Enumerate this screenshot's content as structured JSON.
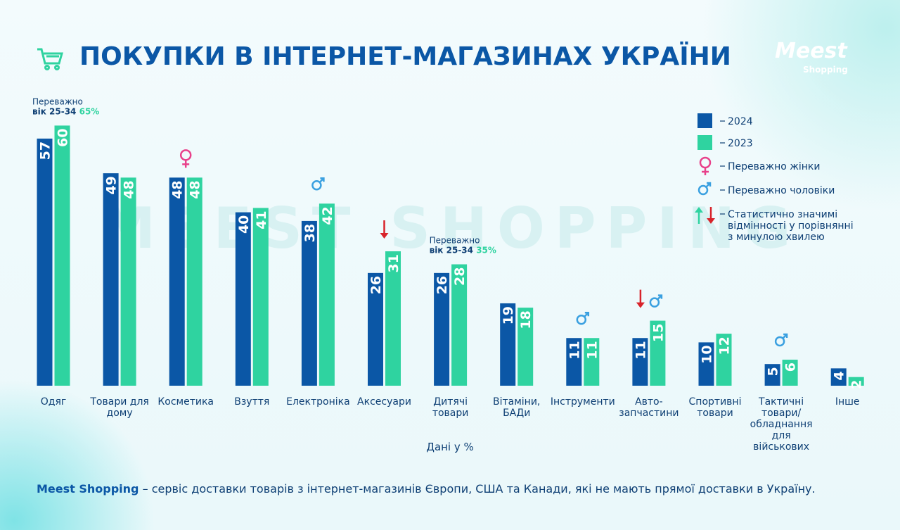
{
  "logo": {
    "brand": "Meest",
    "sub": "Shopping"
  },
  "chart_data": {
    "type": "bar",
    "title": "ПОКУПКИ В ІНТЕРНЕТ-МАГАЗИНАХ УКРАЇНИ",
    "watermark": "MEEST SHOPPING",
    "categories": [
      "Одяг",
      "Товари для дому",
      "Косметика",
      "Взуття",
      "Електроніка",
      "Аксесуари",
      "Дитячі товари",
      "Вітаміни, БАДи",
      "Інструменти",
      "Авто-запчастини",
      "Спортивні товари",
      "Тактичні товари/ обладнання для військових",
      "Інше"
    ],
    "series": [
      {
        "name": "2024",
        "color": "#0b57a6",
        "values": [
          57,
          49,
          48,
          40,
          38,
          26,
          26,
          19,
          11,
          11,
          10,
          5,
          4
        ]
      },
      {
        "name": "2023",
        "color": "#2fd3a0",
        "values": [
          60,
          48,
          48,
          41,
          42,
          31,
          28,
          18,
          11,
          15,
          12,
          6,
          2
        ]
      }
    ],
    "value_note": "Дані у %",
    "annotations": [
      {
        "category": 0,
        "lines": [
          "Переважно",
          "вік 25-34"
        ],
        "highlight": "65%"
      },
      {
        "category": 6,
        "lines": [
          "Переважно",
          "вік 25-34"
        ],
        "highlight": "35%"
      }
    ],
    "markers": {
      "female": [
        2
      ],
      "male": [
        4,
        8,
        9,
        11
      ],
      "down": [
        5,
        9
      ]
    },
    "legend_extra": {
      "female": "Переважно жінки",
      "male": "Переважно чоловіки",
      "significant": [
        "Статистично значимі",
        "відмінності у порівнянні",
        "з минулою хвилею"
      ]
    }
  },
  "footer": {
    "brand": "Meest Shopping",
    "text": "– сервіс доставки товарів з інтернет-магазинів Європи, США та Канади, які не мають прямої доставки в Україну."
  }
}
